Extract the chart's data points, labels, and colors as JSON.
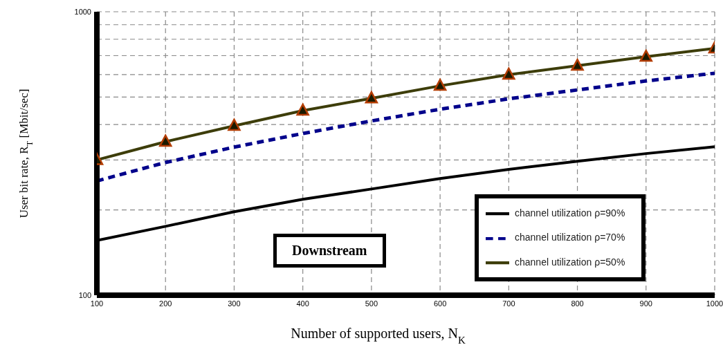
{
  "chart_data": {
    "type": "line",
    "xlabel": "Number of supported users, N$_{K}$",
    "ylabel": "User bit rate, R$_{T}$ [Mbit/sec]",
    "annotations": [
      "Downstream"
    ],
    "x": [
      100,
      200,
      300,
      400,
      500,
      600,
      700,
      800,
      900,
      1000
    ],
    "series": [
      {
        "name": "channel utilization ρ=90%",
        "color": "#000000",
        "line_style": "solid",
        "marker": "none",
        "values": [
          156,
          175,
          197,
          218,
          237,
          258,
          278,
          297,
          316,
          334
        ]
      },
      {
        "name": "channel utilization ρ=70%",
        "color": "#00008b",
        "line_style": "dashed",
        "marker": "none",
        "values": [
          253,
          294,
          333,
          372,
          412,
          453,
          493,
          530,
          570,
          607
        ]
      },
      {
        "name": "channel utilization ρ=50%",
        "color": "#3d3d0a",
        "line_style": "solid",
        "marker": "triangle",
        "values": [
          300,
          348,
          396,
          448,
          495,
          548,
          600,
          645,
          694,
          743
        ]
      }
    ],
    "log": "y",
    "xlim": [
      100,
      1000
    ],
    "xticks": [
      100,
      200,
      300,
      400,
      500,
      600,
      700,
      800,
      900,
      1000
    ],
    "ylim": [
      100,
      1000
    ],
    "yticks": [
      100,
      {
        "value": 200,
        "label": null
      },
      {
        "value": 300,
        "label": null
      },
      {
        "value": 400,
        "label": null
      },
      {
        "value": 500,
        "label": null
      },
      {
        "value": 600,
        "label": null
      },
      {
        "value": 700,
        "label": null
      },
      {
        "value": 800,
        "label": null
      },
      {
        "value": 900,
        "label": null
      },
      1000
    ],
    "grid": true,
    "legend": "bottom right"
  }
}
